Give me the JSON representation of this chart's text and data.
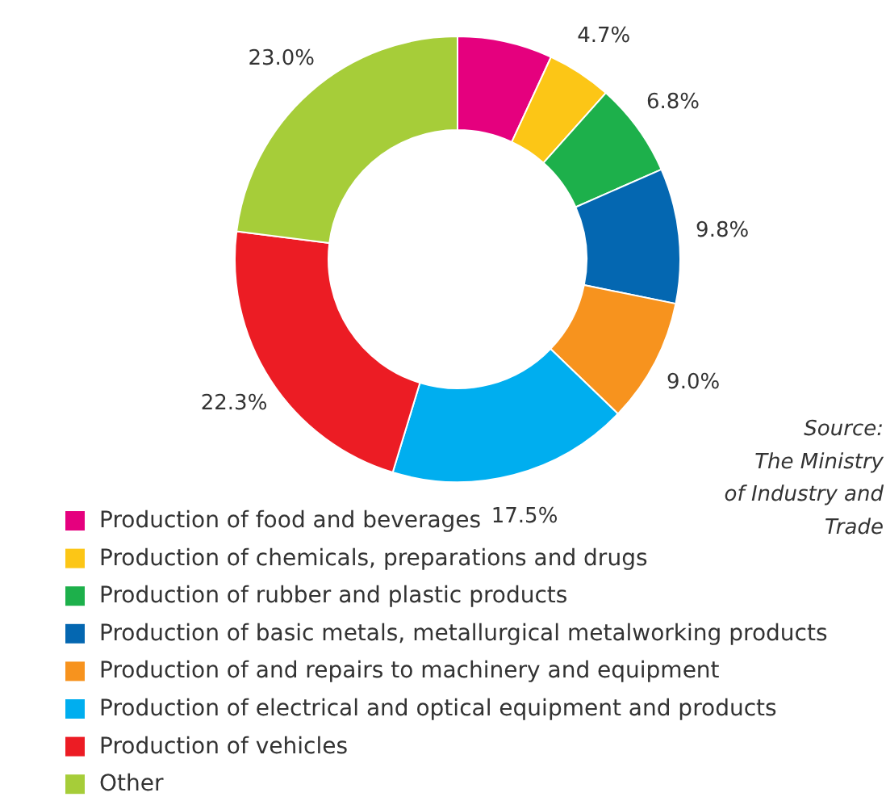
{
  "chart_data": {
    "type": "donut",
    "categories": [
      "Production of food and beverages",
      "Production of chemicals, preparations and drugs",
      "Production of rubber and plastic products",
      "Production of basic metals, metallurgical metalworking products",
      "Production of and repairs to machinery and equipment",
      "Production of electrical and optical equipment and products",
      "Production of vehicles",
      "Other"
    ],
    "values": [
      6.9,
      4.7,
      6.8,
      9.8,
      9.0,
      17.5,
      22.3,
      23.0
    ],
    "value_labels": [
      null,
      "4.7%",
      "6.8%",
      "9.8%",
      "9.0%",
      "17.5%",
      "22.3%",
      "23.0%"
    ],
    "colors": [
      "#e5007e",
      "#fcc616",
      "#1db04b",
      "#0467b1",
      "#f7931e",
      "#00aeef",
      "#ec1c24",
      "#a6cd39"
    ],
    "legend": "bottom left",
    "annotations": [
      "Source:\nThe Ministry\nof Industry and\nTrade"
    ]
  }
}
